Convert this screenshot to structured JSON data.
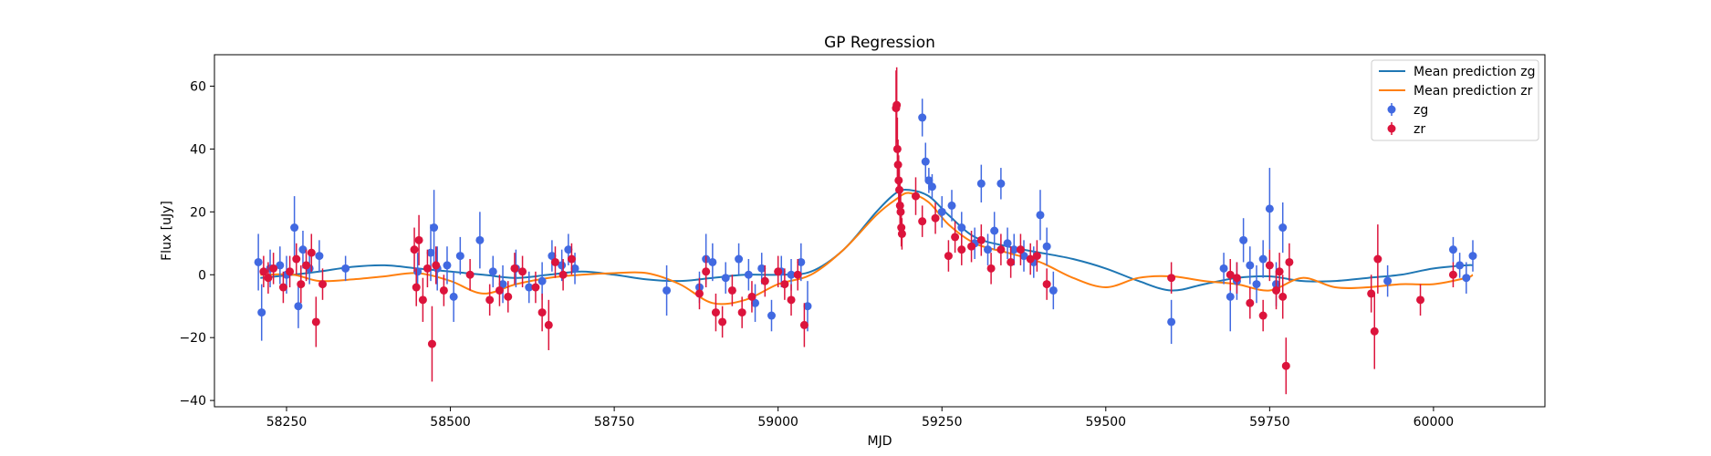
{
  "chart_data": {
    "type": "scatter",
    "title": "GP Regression",
    "xlabel": "MJD",
    "ylabel": "Flux [uJy]",
    "xlim": [
      58140,
      60170
    ],
    "ylim": [
      -42,
      70
    ],
    "xticks": [
      58250,
      58500,
      58750,
      59000,
      59250,
      59500,
      59750,
      60000
    ],
    "yticks": [
      -40,
      -20,
      0,
      20,
      40,
      60
    ],
    "grid": false,
    "legend_position": "top-right",
    "colors": {
      "mean_zg": "#1f77b4",
      "mean_zr": "#ff7f0e",
      "points_zg": "#4169e1",
      "points_zr": "#dc143c"
    },
    "series": [
      {
        "name": "Mean prediction zg",
        "kind": "line",
        "x": [
          58210,
          58260,
          58300,
          58350,
          58400,
          58450,
          58500,
          58550,
          58600,
          58650,
          58700,
          58750,
          58800,
          58850,
          58900,
          58950,
          59000,
          59050,
          59100,
          59150,
          59180,
          59200,
          59230,
          59260,
          59300,
          59350,
          59400,
          59450,
          59500,
          59550,
          59600,
          59650,
          59700,
          59750,
          59800,
          59850,
          59900,
          59950,
          60000,
          60050,
          60060
        ],
        "y": [
          -1,
          0,
          1,
          2.5,
          3,
          2,
          1,
          0,
          -1,
          0,
          1,
          0,
          -1.5,
          -2,
          -1,
          0,
          0,
          1,
          8,
          20,
          26,
          27,
          25,
          19,
          12,
          9,
          7,
          5,
          2,
          -2,
          -5,
          -3,
          -1,
          -0.5,
          -2,
          -2,
          -1,
          0,
          2,
          3,
          3
        ]
      },
      {
        "name": "Mean prediction zr",
        "kind": "line",
        "x": [
          58210,
          58260,
          58300,
          58350,
          58400,
          58450,
          58500,
          58550,
          58600,
          58650,
          58700,
          58750,
          58800,
          58850,
          58900,
          58950,
          59000,
          59050,
          59100,
          59150,
          59180,
          59200,
          59230,
          59260,
          59300,
          59350,
          59400,
          59450,
          59500,
          59550,
          59600,
          59650,
          59700,
          59750,
          59800,
          59850,
          59900,
          59950,
          60000,
          60050,
          60060
        ],
        "y": [
          0,
          0,
          -2,
          -1.5,
          -0.5,
          0.5,
          -2,
          -6,
          -3,
          -1,
          0,
          0.5,
          0.5,
          -3,
          -9,
          -8,
          -3,
          0,
          8,
          19,
          24,
          26,
          23,
          16,
          10,
          7,
          4,
          -1,
          -4,
          -1,
          -0.5,
          -2,
          -3,
          -5,
          -1,
          -4,
          -4,
          -3,
          -3,
          -1,
          0
        ]
      },
      {
        "name": "zg",
        "kind": "errorbar",
        "x": [
          58207,
          58212,
          58225,
          58240,
          58250,
          58262,
          58268,
          58275,
          58285,
          58300,
          58340,
          58450,
          58470,
          58475,
          58480,
          58495,
          58505,
          58515,
          58545,
          58565,
          58580,
          58600,
          58620,
          58640,
          58655,
          58670,
          58680,
          58690,
          58830,
          58880,
          58890,
          58900,
          58920,
          58940,
          58955,
          58965,
          58975,
          58990,
          59005,
          59020,
          59035,
          59045,
          59220,
          59225,
          59230,
          59235,
          59250,
          59265,
          59280,
          59300,
          59310,
          59320,
          59330,
          59340,
          59350,
          59360,
          59375,
          59390,
          59400,
          59410,
          59420,
          59600,
          59680,
          59690,
          59700,
          59710,
          59720,
          59730,
          59740,
          59750,
          59760,
          59770,
          59930,
          60030,
          60040,
          60050,
          60060
        ],
        "y": [
          4,
          -12,
          2,
          3,
          0,
          15,
          -10,
          8,
          2,
          6,
          2,
          1,
          7,
          15,
          2,
          3,
          -7,
          6,
          11,
          1,
          -3,
          2,
          -4,
          -2,
          6,
          3,
          8,
          2,
          -5,
          -4,
          5,
          4,
          -1,
          5,
          0,
          -9,
          2,
          -13,
          1,
          0,
          4,
          -10,
          50,
          36,
          30,
          28,
          20,
          22,
          15,
          10,
          29,
          8,
          14,
          29,
          10,
          8,
          6,
          4,
          19,
          9,
          -5,
          -15,
          2,
          -7,
          -2,
          11,
          3,
          -3,
          5,
          21,
          -3,
          15,
          -2,
          8,
          3,
          -1,
          6
        ],
        "err": [
          9,
          9,
          6,
          6,
          6,
          10,
          7,
          6,
          5,
          5,
          4,
          6,
          9,
          12,
          7,
          6,
          8,
          6,
          9,
          5,
          6,
          6,
          5,
          6,
          5,
          5,
          5,
          5,
          8,
          5,
          8,
          6,
          5,
          5,
          5,
          6,
          5,
          5,
          5,
          5,
          6,
          8,
          6,
          6,
          4,
          4,
          5,
          5,
          5,
          5,
          6,
          5,
          6,
          5,
          5,
          5,
          5,
          5,
          8,
          6,
          6,
          7,
          5,
          11,
          6,
          7,
          6,
          6,
          6,
          13,
          7,
          8,
          5,
          4,
          4,
          5,
          5
        ]
      },
      {
        "name": "zr",
        "kind": "errorbar",
        "x": [
          58215,
          58222,
          58230,
          58245,
          58255,
          58265,
          58272,
          58280,
          58288,
          58295,
          58305,
          58445,
          58448,
          58452,
          58458,
          58465,
          58472,
          58478,
          58490,
          58530,
          58560,
          58575,
          58588,
          58598,
          58610,
          58630,
          58640,
          58650,
          58660,
          58672,
          58685,
          58880,
          58890,
          58905,
          58915,
          58930,
          58945,
          58960,
          58980,
          59000,
          59010,
          59020,
          59030,
          59040,
          59180,
          59181,
          59182,
          59183,
          59184,
          59185,
          59186,
          59187,
          59188,
          59189,
          59210,
          59220,
          59240,
          59260,
          59270,
          59280,
          59295,
          59310,
          59325,
          59340,
          59355,
          59370,
          59385,
          59395,
          59410,
          59600,
          59690,
          59700,
          59720,
          59740,
          59750,
          59760,
          59765,
          59770,
          59775,
          59780,
          59905,
          59910,
          59915,
          59980,
          60030
        ],
        "y": [
          1,
          -1,
          2,
          -4,
          1,
          5,
          -3,
          3,
          7,
          -15,
          -3,
          8,
          -4,
          11,
          -8,
          2,
          -22,
          3,
          -5,
          0,
          -8,
          -5,
          -7,
          2,
          1,
          -4,
          -12,
          -16,
          4,
          0,
          5,
          -6,
          1,
          -12,
          -15,
          -5,
          -12,
          -7,
          -2,
          1,
          -3,
          -8,
          0,
          -16,
          53,
          54,
          40,
          35,
          30,
          27,
          22,
          20,
          15,
          13,
          25,
          17,
          18,
          6,
          12,
          8,
          9,
          11,
          2,
          8,
          4,
          8,
          5,
          6,
          -3,
          -1,
          0,
          -1,
          -9,
          -13,
          3,
          -5,
          1,
          -7,
          -29,
          4,
          -6,
          -18,
          5,
          -8,
          0
        ],
        "err": [
          5,
          5,
          5,
          5,
          5,
          5,
          6,
          5,
          6,
          8,
          5,
          7,
          6,
          8,
          7,
          6,
          12,
          6,
          5,
          5,
          5,
          5,
          5,
          5,
          5,
          5,
          6,
          8,
          5,
          5,
          5,
          5,
          5,
          6,
          5,
          5,
          5,
          5,
          5,
          5,
          5,
          5,
          5,
          7,
          12,
          12,
          10,
          8,
          8,
          7,
          7,
          6,
          6,
          5,
          6,
          5,
          5,
          5,
          5,
          5,
          5,
          5,
          5,
          5,
          5,
          5,
          5,
          5,
          5,
          5,
          5,
          5,
          5,
          5,
          5,
          6,
          6,
          7,
          9,
          6,
          6,
          12,
          11,
          5,
          4
        ]
      }
    ]
  }
}
